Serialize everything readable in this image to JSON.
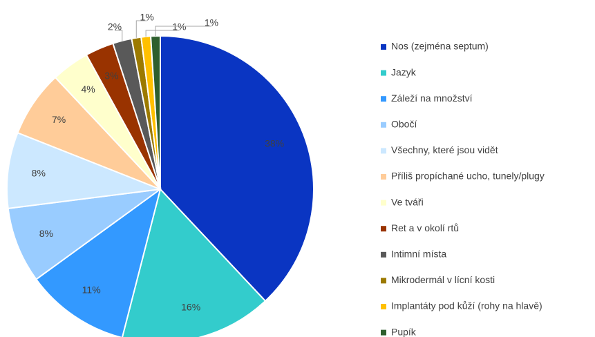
{
  "chart_data": {
    "type": "pie",
    "categories": [
      "Nos (zejména septum)",
      "Jazyk",
      "Záleží na množství",
      "Obočí",
      "Všechny, které jsou vidět",
      "Příliš propíchané ucho, tunely/plugy",
      "Ve tváři",
      "Ret a v okolí rtů",
      "Intimní místa",
      "Mikrodermál v lícní kosti",
      "Implantáty pod kůží (rohy na hlavě)",
      "Pupík"
    ],
    "values": [
      38,
      16,
      11,
      8,
      8,
      7,
      4,
      3,
      2,
      1,
      1,
      1
    ],
    "value_labels": [
      "38%",
      "16%",
      "11%",
      "8%",
      "8%",
      "7%",
      "4%",
      "3%",
      "2%",
      "1%",
      "1%",
      "1%"
    ],
    "colors": [
      "#0a35c2",
      "#33cccc",
      "#3399ff",
      "#99ccff",
      "#cce8ff",
      "#ffcc99",
      "#ffffcc",
      "#993300",
      "#595959",
      "#9c7a00",
      "#ffc000",
      "#2e5f2e"
    ],
    "legend": "right"
  }
}
